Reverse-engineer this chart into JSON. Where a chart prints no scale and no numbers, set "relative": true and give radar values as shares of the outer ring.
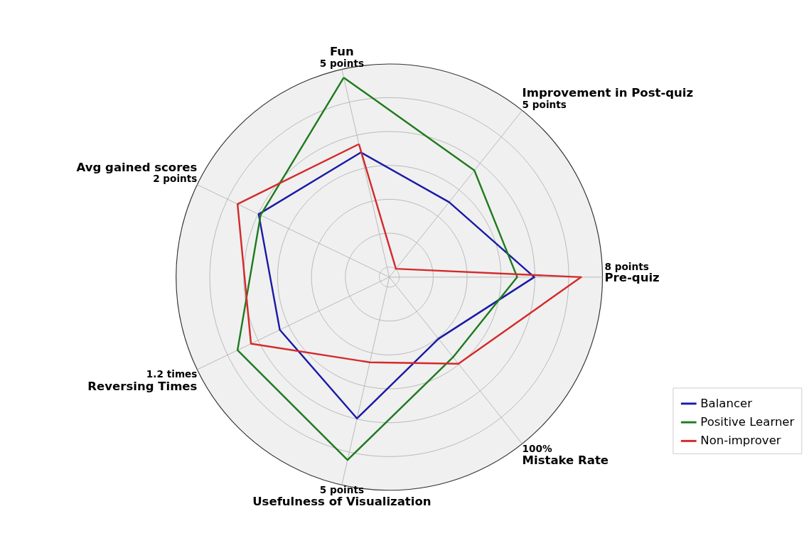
{
  "chart_data": {
    "type": "radar",
    "relative": true,
    "grid": true,
    "legend": "bottom right",
    "categories": [
      "Fun",
      "Improvement in Post-quiz",
      "Pre-quiz",
      "Mistake Rate",
      "Usefulness of Visualization",
      "Reversing Times",
      "Avg gained scores"
    ],
    "annotations": [
      "5 points",
      "5 points",
      "8 points",
      "100%",
      "5 points",
      "1.2 times",
      "2 points"
    ],
    "series": [
      {
        "name": "Balancer",
        "color": "#1a1aa6",
        "values": [
          0.6,
          0.45,
          0.68,
          0.37,
          0.68,
          0.57,
          0.68
        ]
      },
      {
        "name": "Positive Learner",
        "color": "#1e7b1e",
        "values": [
          0.96,
          0.64,
          0.6,
          0.48,
          0.88,
          0.79,
          0.67
        ]
      },
      {
        "name": "Non-improver",
        "color": "#d42a2a",
        "values": [
          0.64,
          0.05,
          0.9,
          0.52,
          0.41,
          0.72,
          0.79
        ]
      }
    ]
  }
}
